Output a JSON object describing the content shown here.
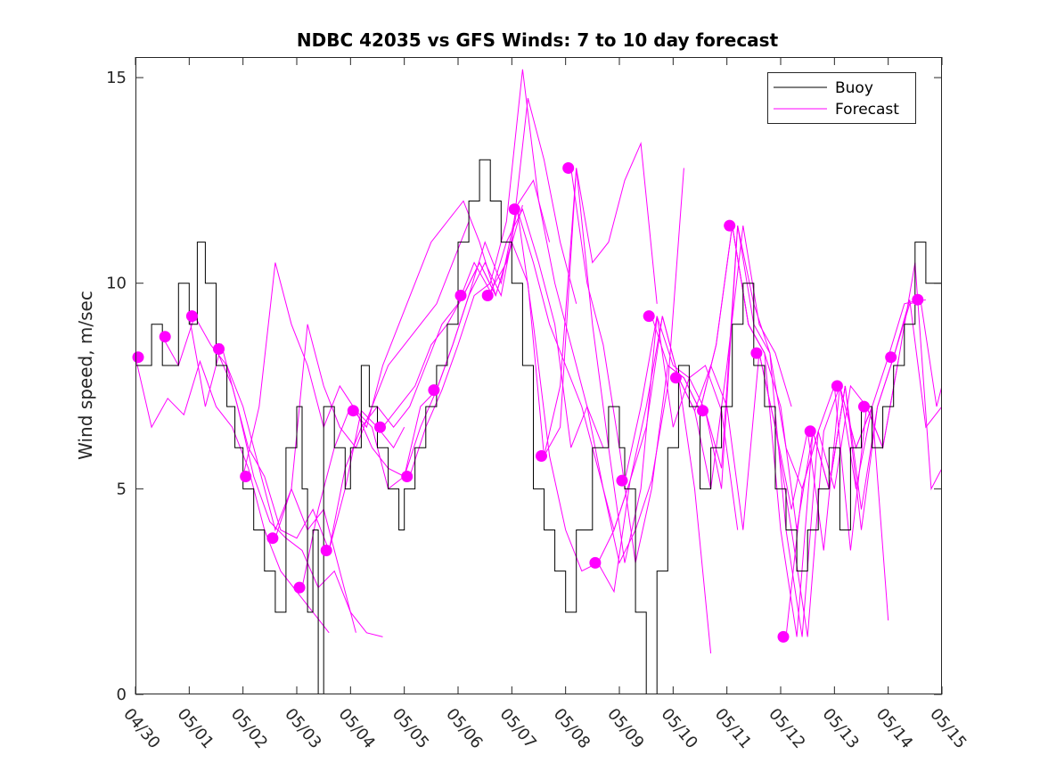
{
  "chart_data": {
    "type": "line",
    "title": "NDBC 42035 vs GFS Winds: 7 to 10 day forecast",
    "xlabel": "",
    "ylabel": "Wind speed, m/sec",
    "xlim": [
      "04/30",
      "05/15"
    ],
    "ylim": [
      0,
      15.5
    ],
    "x_tick_labels": [
      "04/30",
      "05/01",
      "05/02",
      "05/03",
      "05/04",
      "05/05",
      "05/06",
      "05/07",
      "05/08",
      "05/09",
      "05/10",
      "05/11",
      "05/12",
      "05/13",
      "05/14",
      "05/15"
    ],
    "y_ticks": [
      0,
      5,
      10,
      15
    ],
    "grid": false,
    "legend": {
      "placement": "top-right",
      "entries": [
        {
          "label": "Buoy",
          "color": "#000000"
        },
        {
          "label": "Forecast",
          "color": "#ff00ff"
        }
      ]
    },
    "colors": {
      "buoy": "#000000",
      "forecast": "#ff00ff"
    },
    "buoy": {
      "name": "Buoy",
      "x_days": [
        0,
        0.3,
        0.5,
        0.8,
        1.0,
        1.15,
        1.3,
        1.5,
        1.7,
        1.85,
        2.0,
        2.2,
        2.4,
        2.6,
        2.8,
        3.0,
        3.1,
        3.2,
        3.3,
        3.4,
        3.5,
        3.7,
        3.9,
        4.0,
        4.2,
        4.35,
        4.5,
        4.7,
        4.9,
        5.0,
        5.2,
        5.4,
        5.6,
        5.8,
        6.0,
        6.2,
        6.4,
        6.6,
        6.8,
        7.0,
        7.2,
        7.4,
        7.6,
        7.8,
        8.0,
        8.2,
        8.5,
        8.8,
        9.0,
        9.1,
        9.3,
        9.5,
        9.7,
        9.9,
        10.1,
        10.3,
        10.5,
        10.7,
        10.9,
        11.1,
        11.3,
        11.5,
        11.7,
        11.9,
        12.1,
        12.3,
        12.5,
        12.7,
        12.9,
        13.1,
        13.3,
        13.5,
        13.7,
        13.9,
        14.1,
        14.3,
        14.5,
        14.7,
        15.0
      ],
      "values": [
        8,
        9,
        8,
        10,
        9,
        11,
        10,
        8,
        7,
        6,
        5,
        4,
        3,
        2,
        6,
        7,
        5,
        2,
        4,
        0,
        7,
        6,
        5,
        6,
        8,
        7,
        6,
        5,
        4,
        5,
        6,
        7,
        8,
        9,
        11,
        12,
        13,
        12,
        11,
        10,
        8,
        5,
        4,
        3,
        2,
        4,
        6,
        7,
        6,
        5,
        2,
        0,
        3,
        6,
        8,
        7,
        5,
        6,
        7,
        9,
        10,
        8,
        7,
        5,
        4,
        3,
        4,
        5,
        6,
        4,
        6,
        7,
        6,
        7,
        8,
        9,
        11,
        10,
        9
      ]
    },
    "forecast_series": [
      {
        "x_days": [
          0,
          0.3,
          0.6,
          0.9,
          1.2,
          1.5,
          1.8,
          2.1,
          2.4,
          2.7,
          3.0,
          3.3,
          3.6
        ],
        "values": [
          8.2,
          6.5,
          7.2,
          6.8,
          8.1,
          7.0,
          6.5,
          5.5,
          4.0,
          3.0,
          2.5,
          2.0,
          1.5
        ]
      },
      {
        "x_days": [
          0.5,
          0.8,
          1.1,
          1.4,
          1.7,
          2.0,
          2.3,
          2.6,
          2.9,
          3.2,
          3.5,
          3.9,
          4.1
        ],
        "values": [
          8.7,
          8.0,
          9.2,
          8.5,
          8.0,
          7.0,
          5.5,
          4.0,
          5.0,
          4.0,
          4.5,
          2.5,
          1.5
        ]
      },
      {
        "x_days": [
          1.0,
          1.3,
          1.6,
          1.9,
          2.2,
          2.5,
          2.8,
          3.1,
          3.4,
          3.7,
          4.0,
          4.3,
          4.6
        ],
        "values": [
          9.2,
          7.0,
          8.5,
          7.0,
          5.3,
          4.2,
          3.8,
          3.5,
          2.6,
          3.0,
          2.0,
          1.5,
          1.4
        ]
      },
      {
        "x_days": [
          1.5,
          1.8,
          2.1,
          2.4,
          2.7,
          3.0,
          3.3,
          3.6,
          3.9,
          4.2,
          4.5,
          4.8,
          5.0
        ],
        "values": [
          8.4,
          7.5,
          6.0,
          5.3,
          4.0,
          3.8,
          4.5,
          3.5,
          5.0,
          6.9,
          6.5,
          6.0,
          6.5
        ]
      },
      {
        "x_days": [
          2.0,
          2.3,
          2.6,
          2.9,
          3.2,
          3.5,
          3.8,
          4.1,
          4.4,
          4.7,
          5.0,
          5.3,
          5.6
        ],
        "values": [
          5.3,
          7.0,
          10.5,
          9.0,
          8.0,
          6.5,
          7.5,
          6.9,
          6.5,
          5.0,
          5.3,
          7.0,
          7.4
        ]
      },
      {
        "x_days": [
          2.6,
          2.9,
          3.2,
          3.5,
          3.8,
          4.1,
          4.4,
          4.7,
          5.0,
          5.3,
          5.6,
          5.9,
          6.2
        ],
        "values": [
          3.8,
          5.0,
          9.0,
          7.5,
          6.5,
          6.0,
          7.0,
          8.0,
          8.5,
          9.0,
          9.5,
          10.5,
          11.5
        ]
      },
      {
        "x_days": [
          3.1,
          3.4,
          3.7,
          4.0,
          4.3,
          4.6,
          4.9,
          5.2,
          5.5,
          5.8,
          6.1,
          6.4,
          6.7
        ],
        "values": [
          2.6,
          4.5,
          6.0,
          7.0,
          6.5,
          8.0,
          9.0,
          10.0,
          11.0,
          11.5,
          12.0,
          11.0,
          9.7
        ]
      },
      {
        "x_days": [
          3.6,
          3.9,
          4.2,
          4.5,
          4.8,
          5.1,
          5.4,
          5.7,
          6.0,
          6.3,
          6.6,
          6.9,
          7.2
        ],
        "values": [
          3.5,
          5.5,
          6.5,
          7.0,
          6.5,
          7.0,
          8.0,
          9.0,
          9.5,
          10.5,
          9.8,
          10.5,
          11.9
        ]
      },
      {
        "x_days": [
          4.1,
          4.4,
          4.7,
          5.0,
          5.3,
          5.6,
          5.9,
          6.2,
          6.5,
          6.8,
          7.1,
          7.4,
          7.7
        ],
        "values": [
          6.9,
          6.0,
          5.5,
          5.3,
          6.5,
          7.4,
          8.5,
          9.7,
          11.0,
          10.0,
          11.9,
          12.5,
          11.0
        ]
      },
      {
        "x_days": [
          4.6,
          4.9,
          5.2,
          5.5,
          5.8,
          6.1,
          6.4,
          6.7,
          7.0,
          7.3,
          7.6,
          7.9,
          8.2
        ],
        "values": [
          6.5,
          7.0,
          7.5,
          8.5,
          9.0,
          9.7,
          10.5,
          9.7,
          11.0,
          14.5,
          13.0,
          11.0,
          9.5
        ]
      },
      {
        "x_days": [
          5.1,
          5.4,
          5.7,
          6.0,
          6.3,
          6.6,
          6.9,
          7.2,
          7.5,
          7.8,
          8.1,
          8.4,
          8.7
        ],
        "values": [
          5.3,
          6.5,
          7.4,
          8.5,
          9.7,
          10.0,
          11.5,
          15.2,
          12.0,
          10.0,
          8.5,
          7.0,
          6.0
        ]
      },
      {
        "x_days": [
          5.6,
          5.9,
          6.2,
          6.5,
          6.8,
          7.1,
          7.4,
          7.7,
          8.0,
          8.3,
          8.6,
          8.9,
          9.2
        ],
        "values": [
          7.4,
          8.5,
          9.7,
          10.5,
          9.7,
          11.8,
          10.5,
          9.0,
          8.0,
          7.0,
          5.5,
          4.0,
          5.2
        ]
      },
      {
        "x_days": [
          6.1,
          6.4,
          6.7,
          7.0,
          7.3,
          7.6,
          7.9,
          8.2,
          8.5,
          8.8,
          9.1,
          9.4,
          9.7
        ],
        "values": [
          9.7,
          10.5,
          9.7,
          11.0,
          10.0,
          5.8,
          6.5,
          12.8,
          10.5,
          11.0,
          12.5,
          13.4,
          9.5
        ]
      },
      {
        "x_days": [
          6.6,
          6.9,
          7.2,
          7.5,
          7.8,
          8.1,
          8.4,
          8.7,
          9.0,
          9.3,
          9.6,
          9.9,
          10.2
        ],
        "values": [
          9.7,
          11.0,
          11.8,
          10.5,
          9.0,
          6.0,
          7.0,
          5.0,
          3.2,
          4.0,
          5.2,
          7.5,
          12.8
        ]
      },
      {
        "x_days": [
          7.1,
          7.4,
          7.7,
          8.0,
          8.3,
          8.6,
          8.9,
          9.2,
          9.5,
          9.8,
          10.1,
          10.4,
          10.7
        ],
        "values": [
          11.8,
          9.0,
          5.8,
          4.0,
          3.0,
          3.2,
          2.5,
          5.2,
          7.0,
          9.2,
          7.7,
          5.0,
          1.0
        ]
      },
      {
        "x_days": [
          7.6,
          7.9,
          8.2,
          8.5,
          8.8,
          9.1,
          9.4,
          9.7,
          10.0,
          10.3,
          10.6,
          10.9,
          11.2
        ],
        "values": [
          5.8,
          7.5,
          12.8,
          9.0,
          6.0,
          3.2,
          5.0,
          9.2,
          6.5,
          7.7,
          8.0,
          6.9,
          4.0
        ]
      },
      {
        "x_days": [
          8.1,
          8.4,
          8.7,
          9.0,
          9.3,
          9.6,
          9.9,
          10.2,
          10.5,
          10.8,
          11.1,
          11.4,
          11.7
        ],
        "values": [
          12.8,
          10.0,
          8.5,
          6.0,
          3.2,
          5.0,
          8.0,
          7.7,
          6.9,
          8.5,
          11.4,
          9.0,
          8.3
        ]
      },
      {
        "x_days": [
          8.6,
          8.9,
          9.2,
          9.5,
          9.8,
          10.1,
          10.4,
          10.7,
          11.0,
          11.3,
          11.6,
          11.9,
          12.2
        ],
        "values": [
          3.2,
          4.0,
          5.2,
          6.5,
          9.2,
          7.7,
          6.9,
          5.0,
          8.0,
          11.4,
          9.0,
          8.3,
          7.0
        ]
      },
      {
        "x_days": [
          9.1,
          9.4,
          9.7,
          10.0,
          10.3,
          10.6,
          10.9,
          11.2,
          11.5,
          11.8,
          12.1,
          12.4,
          12.7
        ],
        "values": [
          5.2,
          7.0,
          9.2,
          8.0,
          7.7,
          6.9,
          5.5,
          11.4,
          9.5,
          8.3,
          6.0,
          5.0,
          6.4
        ]
      },
      {
        "x_days": [
          9.6,
          9.9,
          10.2,
          10.5,
          10.8,
          11.1,
          11.4,
          11.7,
          12.0,
          12.3,
          12.6,
          12.9,
          13.2
        ],
        "values": [
          9.2,
          8.0,
          7.7,
          6.9,
          8.5,
          11.4,
          9.0,
          8.3,
          4.0,
          1.4,
          6.4,
          5.0,
          7.5
        ]
      },
      {
        "x_days": [
          10.1,
          10.4,
          10.7,
          11.0,
          11.3,
          11.6,
          11.9,
          12.2,
          12.5,
          12.8,
          13.1,
          13.4,
          13.7
        ],
        "values": [
          7.7,
          6.9,
          8.0,
          7.0,
          4.0,
          8.3,
          6.5,
          4.5,
          6.4,
          3.5,
          7.5,
          6.0,
          7.0
        ]
      },
      {
        "x_days": [
          10.6,
          10.9,
          11.2,
          11.5,
          11.8,
          12.1,
          12.4,
          12.7,
          13.0,
          13.3,
          13.6,
          13.9,
          14.2
        ],
        "values": [
          6.9,
          5.0,
          11.4,
          9.0,
          8.3,
          4.0,
          1.4,
          6.4,
          5.0,
          7.5,
          7.0,
          6.0,
          8.2
        ]
      },
      {
        "x_days": [
          11.1,
          11.4,
          11.7,
          12.0,
          12.3,
          12.6,
          12.9,
          13.2,
          13.5,
          13.8,
          14.1,
          14.4,
          14.7
        ],
        "values": [
          11.4,
          9.0,
          8.3,
          7.0,
          4.0,
          6.4,
          5.0,
          7.5,
          4.5,
          7.0,
          8.2,
          9.5,
          9.6
        ]
      },
      {
        "x_days": [
          11.6,
          11.9,
          12.2,
          12.5,
          12.8,
          13.1,
          13.4,
          13.7,
          14.0,
          14.3,
          14.6,
          14.9,
          15.0
        ],
        "values": [
          8.3,
          6.5,
          4.0,
          1.4,
          6.4,
          7.5,
          5.0,
          7.0,
          8.2,
          9.5,
          9.6,
          7.0,
          7.5
        ]
      },
      {
        "x_days": [
          12.1,
          12.4,
          12.7,
          13.0,
          13.3,
          13.6,
          13.9,
          14.2,
          14.5,
          14.8,
          15.0
        ],
        "values": [
          1.4,
          5.0,
          6.4,
          7.5,
          3.5,
          7.0,
          6.0,
          8.2,
          10.5,
          5.0,
          5.5
        ]
      },
      {
        "x_days": [
          12.6,
          12.9,
          13.2,
          13.5,
          13.8,
          14.1,
          14.4,
          14.7,
          15.0
        ],
        "values": [
          6.4,
          5.0,
          7.5,
          4.0,
          7.0,
          8.2,
          9.6,
          6.5,
          7.0
        ]
      },
      {
        "x_days": [
          13.1,
          13.4,
          13.7,
          14.0
        ],
        "values": [
          7.5,
          6.0,
          7.0,
          1.8
        ]
      }
    ],
    "forecast_markers": {
      "x_days": [
        0.05,
        0.55,
        1.05,
        1.55,
        2.05,
        2.55,
        3.05,
        3.55,
        4.05,
        4.55,
        5.05,
        5.55,
        6.05,
        6.55,
        7.05,
        7.55,
        8.05,
        8.55,
        9.05,
        9.55,
        10.05,
        10.55,
        11.05,
        11.55,
        12.05,
        12.55,
        13.05,
        13.55,
        14.05,
        14.55
      ],
      "values": [
        8.2,
        8.7,
        9.2,
        8.4,
        5.3,
        3.8,
        2.6,
        3.5,
        6.9,
        6.5,
        5.3,
        7.4,
        9.7,
        9.7,
        11.8,
        5.8,
        12.8,
        3.2,
        5.2,
        9.2,
        7.7,
        6.9,
        11.4,
        8.3,
        1.4,
        6.4,
        7.5,
        7.0,
        8.2,
        9.6
      ]
    }
  }
}
